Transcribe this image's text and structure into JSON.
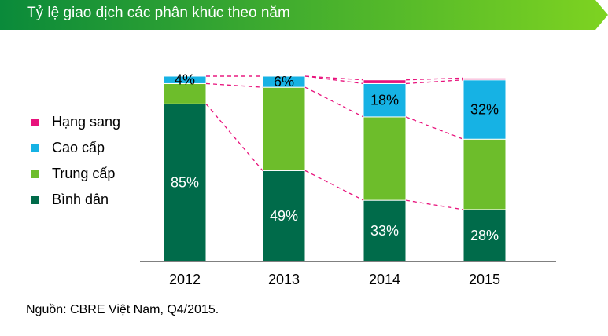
{
  "title": "Tỷ lệ giao dịch các phân khúc theo năm",
  "source": "Nguồn: CBRE Việt Nam, Q4/2015.",
  "colors": {
    "banner_start": "#0a8a3a",
    "banner_end": "#7ed321",
    "connector": "#e8127c"
  },
  "chart_data": {
    "type": "bar",
    "stacked": true,
    "categories": [
      "2012",
      "2013",
      "2014",
      "2015"
    ],
    "ylim": [
      0,
      100
    ],
    "series": [
      {
        "name": "Bình dân",
        "color": "#006b4a",
        "values": [
          85,
          49,
          33,
          28
        ],
        "labels": [
          "85%",
          "49%",
          "33%",
          "28%"
        ]
      },
      {
        "name": "Trung cấp",
        "color": "#6dbd2b",
        "values": [
          11,
          45,
          45,
          38
        ],
        "labels": [
          "",
          "",
          "",
          ""
        ]
      },
      {
        "name": "Cao cấp",
        "color": "#16b2e4",
        "values": [
          4,
          6,
          18,
          32
        ],
        "labels": [
          "4%",
          "6%",
          "18%",
          "32%"
        ]
      },
      {
        "name": "Hạng sang",
        "color": "#e8127c",
        "values": [
          0,
          0,
          2,
          1
        ],
        "labels": [
          "",
          "",
          "",
          ""
        ]
      }
    ],
    "legend": [
      "Hạng sang",
      "Cao cấp",
      "Trung cấp",
      "Bình dân"
    ],
    "legend_position": "left",
    "grid": false
  }
}
